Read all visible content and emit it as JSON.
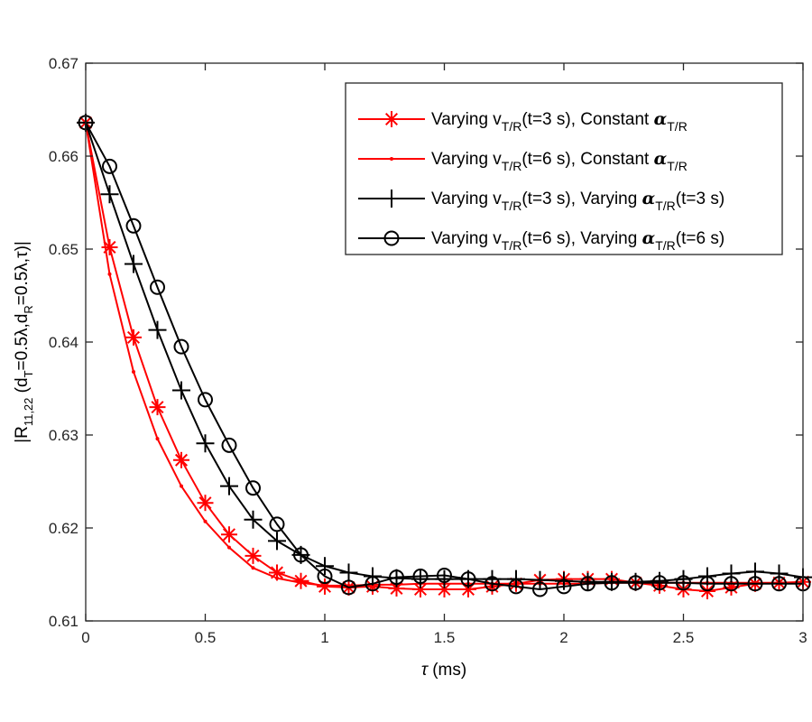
{
  "chart_data": {
    "type": "line",
    "xlabel": {
      "symbol": "τ",
      "unit": " (ms)"
    },
    "ylabel": {
      "main": "|R",
      "sub1": "11,22",
      "mid1": " (d",
      "sub2": "T",
      "mid2": "=0.5λ,d",
      "sub3": "R",
      "end": "=0.5λ,τ)|"
    },
    "xlim": [
      0,
      3
    ],
    "ylim": [
      0.61,
      0.67
    ],
    "xticks": [
      "0",
      "0.5",
      "1",
      "1.5",
      "2",
      "2.5",
      "3"
    ],
    "xtick_values": [
      0,
      0.5,
      1,
      1.5,
      2,
      2.5,
      3
    ],
    "yticks": [
      "0.61",
      "0.62",
      "0.63",
      "0.64",
      "0.65",
      "0.66",
      "0.67"
    ],
    "ytick_values": [
      0.61,
      0.62,
      0.63,
      0.64,
      0.65,
      0.66,
      0.67
    ],
    "grid": false,
    "legend_position": "top-right",
    "x": [
      0,
      0.1,
      0.2,
      0.3,
      0.4,
      0.5,
      0.6,
      0.7,
      0.8,
      0.9,
      1.0,
      1.1,
      1.2,
      1.3,
      1.4,
      1.5,
      1.6,
      1.7,
      1.8,
      1.9,
      2.0,
      2.1,
      2.2,
      2.3,
      2.4,
      2.5,
      2.6,
      2.7,
      2.8,
      2.9,
      3.0
    ],
    "series": [
      {
        "name": {
          "a": "Varying v",
          "b": "T/R",
          "c": "(t=3 s), Constant ",
          "d": "α",
          "e": "T/R",
          "f": ""
        },
        "color": "#ff0000",
        "marker": "asterisk",
        "values": [
          0.6636,
          0.6502,
          0.6405,
          0.633,
          0.6273,
          0.6227,
          0.6193,
          0.617,
          0.6152,
          0.6143,
          0.6137,
          0.6136,
          0.6137,
          0.6135,
          0.6134,
          0.6134,
          0.6134,
          0.6137,
          0.614,
          0.6144,
          0.6145,
          0.6145,
          0.6145,
          0.6141,
          0.6138,
          0.6134,
          0.6132,
          0.6136,
          0.614,
          0.6141,
          0.6142
        ]
      },
      {
        "name": {
          "a": "Varying v",
          "b": "T/R",
          "c": "(t=6 s), Constant ",
          "d": "α",
          "e": "T/R",
          "f": ""
        },
        "color": "#ff0000",
        "marker": "point",
        "values": [
          0.6636,
          0.6473,
          0.6368,
          0.6296,
          0.6245,
          0.6207,
          0.6179,
          0.6157,
          0.6146,
          0.6141,
          0.6138,
          0.6138,
          0.6139,
          0.6139,
          0.614,
          0.614,
          0.614,
          0.614,
          0.614,
          0.614,
          0.614,
          0.614,
          0.6141,
          0.6141,
          0.6141,
          0.6141,
          0.6141,
          0.6141,
          0.6141,
          0.6141,
          0.6141
        ]
      },
      {
        "name": {
          "a": "Varying v",
          "b": "T/R",
          "c": "(t=3 s), Varying ",
          "d": "α",
          "e": "T/R",
          "f": "(t=3 s)"
        },
        "color": "#000000",
        "marker": "plus",
        "values": [
          0.6636,
          0.6559,
          0.6484,
          0.6413,
          0.6348,
          0.6291,
          0.6245,
          0.6209,
          0.6186,
          0.6171,
          0.6159,
          0.6152,
          0.6148,
          0.6146,
          0.6145,
          0.6145,
          0.6145,
          0.6145,
          0.6145,
          0.6144,
          0.6143,
          0.6142,
          0.6142,
          0.6142,
          0.6143,
          0.6145,
          0.6148,
          0.6151,
          0.6153,
          0.6151,
          0.6147
        ]
      },
      {
        "name": {
          "a": "Varying v",
          "b": "T/R",
          "c": "(t=6 s), Varying ",
          "d": "α",
          "e": "T/R",
          "f": "(t=6 s)"
        },
        "color": "#000000",
        "marker": "circle",
        "values": [
          0.6636,
          0.6589,
          0.6525,
          0.6459,
          0.6395,
          0.6338,
          0.6289,
          0.6243,
          0.6204,
          0.6171,
          0.6148,
          0.6136,
          0.614,
          0.6147,
          0.6148,
          0.6149,
          0.6145,
          0.614,
          0.6137,
          0.6134,
          0.6137,
          0.614,
          0.6141,
          0.6141,
          0.6141,
          0.6141,
          0.614,
          0.614,
          0.614,
          0.614,
          0.614
        ]
      }
    ]
  }
}
